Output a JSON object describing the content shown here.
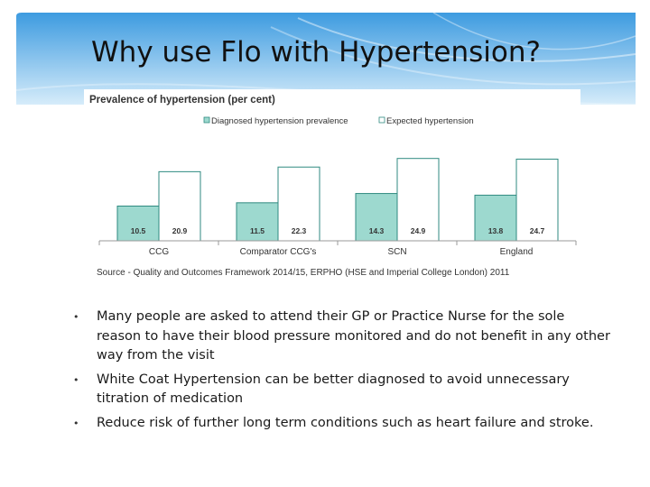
{
  "slide": {
    "title": "Why use Flo with Hypertension?",
    "bullets": [
      "Many people are asked to attend their GP or Practice Nurse for the sole reason to have their blood pressure monitored and do not benefit in any other way from the visit",
      "White Coat Hypertension can be better diagnosed to avoid unnecessary titration of medication",
      "Reduce risk of further long term conditions such as heart failure and stroke."
    ]
  },
  "colors": {
    "header_blue": "#4fa7e2",
    "header_light": "#bfe0f6",
    "bar_diagnosed": "#9dd9cf",
    "bar_expected": "#ffffff",
    "bar_stroke": "#2f8a80"
  },
  "chart_data": {
    "type": "bar",
    "title": "Prevalence of hypertension (per cent)",
    "categories": [
      "CCG",
      "Comparator CCG's",
      "SCN",
      "England"
    ],
    "series": [
      {
        "name": "Diagnosed hypertension prevalence",
        "values": [
          10.5,
          11.5,
          14.3,
          13.8
        ],
        "labels": [
          "10.5",
          "11.5",
          "14.3",
          "13.8"
        ]
      },
      {
        "name": "Expected hypertension",
        "values": [
          20.9,
          22.3,
          24.9,
          24.7
        ],
        "labels": [
          "20.9",
          "22.3",
          "24.9",
          "24.7"
        ]
      }
    ],
    "ylim": [
      0,
      30
    ],
    "legend": "top-left",
    "grid": false,
    "source": "Source - Quality and Outcomes Framework 2014/15, ERPHO (HSE and Imperial College London) 2011"
  }
}
